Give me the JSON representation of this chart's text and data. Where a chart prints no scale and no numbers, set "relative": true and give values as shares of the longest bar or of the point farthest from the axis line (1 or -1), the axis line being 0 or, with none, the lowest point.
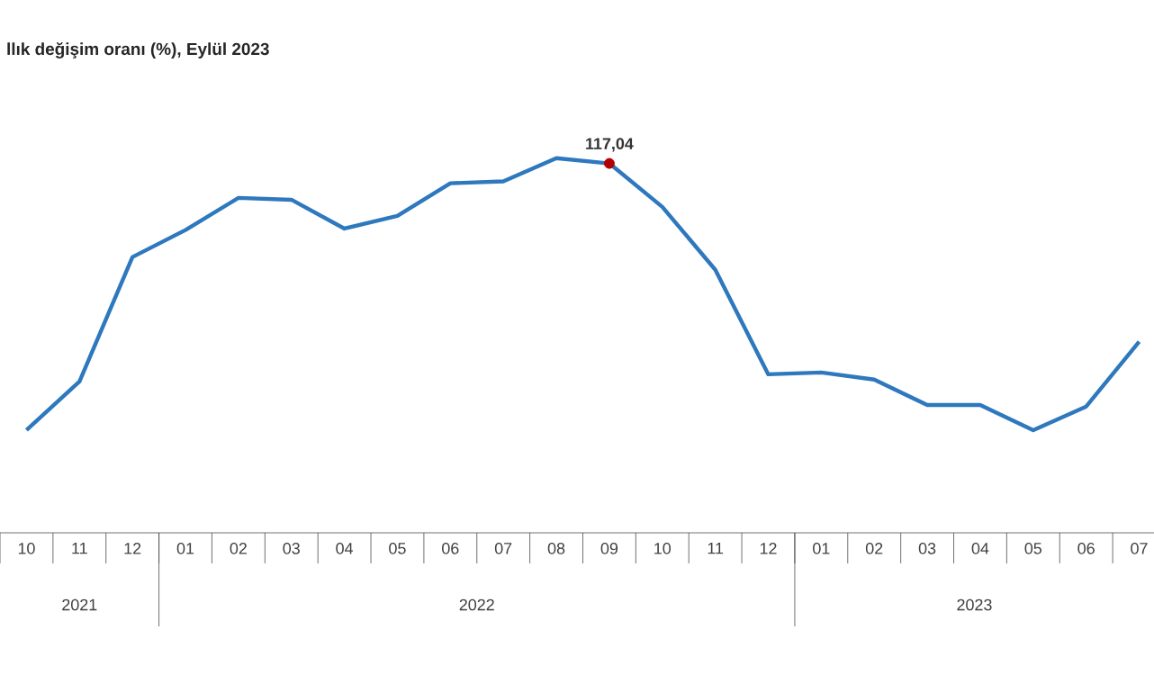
{
  "chart_data": {
    "type": "line",
    "title": "llık değişim oranı (%), Eylül 2023",
    "categories": [
      "10",
      "11",
      "12",
      "01",
      "02",
      "03",
      "04",
      "05",
      "06",
      "07",
      "08",
      "09",
      "10",
      "11",
      "12",
      "01",
      "02",
      "03",
      "04",
      "05",
      "06",
      "07"
    ],
    "series": [
      {
        "color": "#2e78bd",
        "values": [
          0.274,
          0.404,
          0.736,
          0.808,
          0.894,
          0.889,
          0.812,
          0.846,
          0.933,
          0.938,
          1,
          0.986,
          0.87,
          0.702,
          0.423,
          0.428,
          0.409,
          0.341,
          0.341,
          0.274,
          0.337,
          0.51
        ]
      }
    ],
    "relative": true,
    "annotations": [
      "2021",
      "2022",
      "2023",
      {
        "text": "117,04",
        "x": "09",
        "y": 0.986
      }
    ],
    "grid": false,
    "marker": "none",
    "line_style": "solid"
  }
}
